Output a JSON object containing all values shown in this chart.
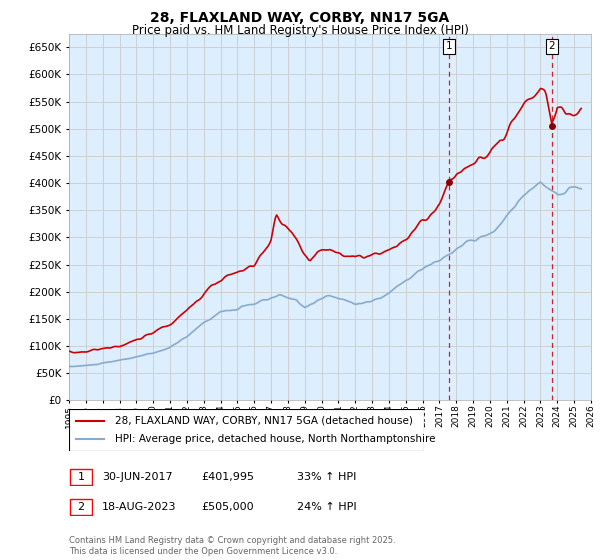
{
  "title": "28, FLAXLAND WAY, CORBY, NN17 5GA",
  "subtitle": "Price paid vs. HM Land Registry's House Price Index (HPI)",
  "ylabel_ticks": [
    0,
    50000,
    100000,
    150000,
    200000,
    250000,
    300000,
    350000,
    400000,
    450000,
    500000,
    550000,
    600000,
    650000
  ],
  "xlim_start": 1995.0,
  "xlim_end": 2026.0,
  "ylim": [
    0,
    675000
  ],
  "sale1_date": 2017.58,
  "sale1_label": "1",
  "sale1_price": 401995,
  "sale1_text": "30-JUN-2017",
  "sale1_pct": "33% ↑ HPI",
  "sale2_date": 2023.67,
  "sale2_label": "2",
  "sale2_price": 505000,
  "sale2_text": "18-AUG-2023",
  "sale2_pct": "24% ↑ HPI",
  "line1_color": "#cc0000",
  "line2_color": "#88aacc",
  "vline_color": "#cc0000",
  "grid_color": "#cccccc",
  "background_color": "#ddeeff",
  "legend1": "28, FLAXLAND WAY, CORBY, NN17 5GA (detached house)",
  "legend2": "HPI: Average price, detached house, North Northamptonshire",
  "footer": "Contains HM Land Registry data © Crown copyright and database right 2025.\nThis data is licensed under the Open Government Licence v3.0."
}
